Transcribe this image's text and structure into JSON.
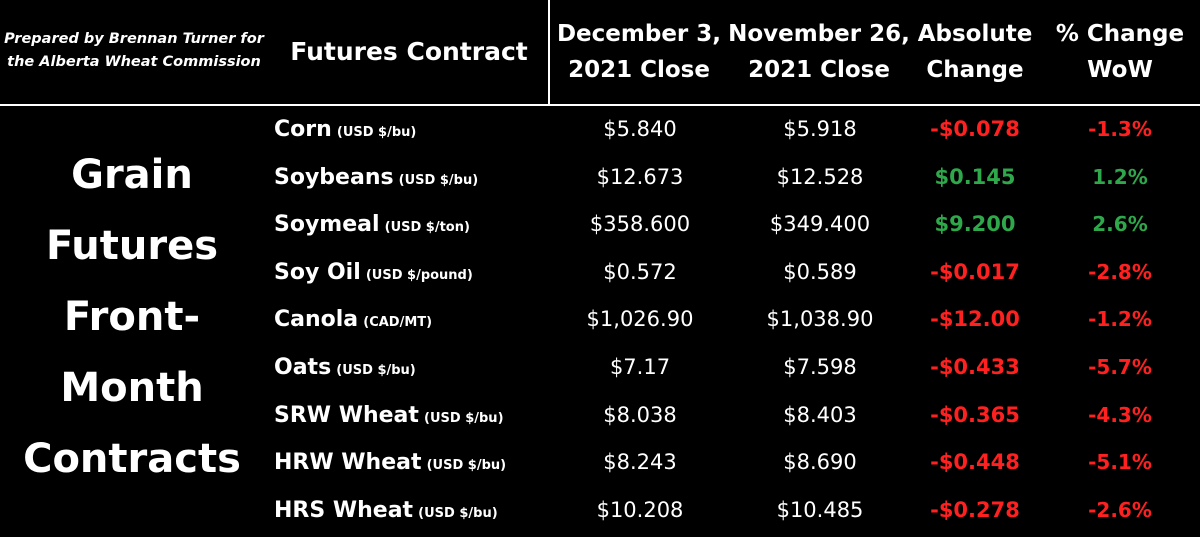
{
  "credit": {
    "line1": "Prepared by Brennan Turner for",
    "line2": "the Alberta Wheat Commission"
  },
  "headers": {
    "contract": "Futures Contract",
    "dec_line1": "December 3,",
    "dec_line2": "2021 Close",
    "nov_line1": "November 26,",
    "nov_line2": "2021 Close",
    "abs_line1": "Absolute",
    "abs_line2": "Change",
    "pct_line1": "% Change",
    "pct_line2": "WoW"
  },
  "side_title": {
    "line1": "Grain",
    "line2": "Futures",
    "line3": "Front-",
    "line4": "Month",
    "line5": "Contracts"
  },
  "colors": {
    "negative": "#ff2020",
    "positive": "#2ea84a",
    "background": "#000000",
    "text": "#ffffff"
  },
  "chart_data": {
    "type": "table",
    "columns": [
      "Futures Contract",
      "December 3, 2021 Close",
      "November 26, 2021 Close",
      "Absolute Change",
      "% Change WoW"
    ],
    "rows": [
      {
        "name": "Corn",
        "unit": "(USD $/bu)",
        "dec3": "$5.840",
        "nov26": "$5.918",
        "abs": "-$0.078",
        "pct": "-1.3%",
        "dir": "neg"
      },
      {
        "name": "Soybeans",
        "unit": "(USD $/bu)",
        "dec3": "$12.673",
        "nov26": "$12.528",
        "abs": "$0.145",
        "pct": "1.2%",
        "dir": "pos"
      },
      {
        "name": "Soymeal",
        "unit": "(USD $/ton)",
        "dec3": "$358.600",
        "nov26": "$349.400",
        "abs": "$9.200",
        "pct": "2.6%",
        "dir": "pos"
      },
      {
        "name": "Soy Oil",
        "unit": "(USD $/pound)",
        "dec3": "$0.572",
        "nov26": "$0.589",
        "abs": "-$0.017",
        "pct": "-2.8%",
        "dir": "neg"
      },
      {
        "name": "Canola",
        "unit": "(CAD/MT)",
        "dec3": "$1,026.90",
        "nov26": "$1,038.90",
        "abs": "-$12.00",
        "pct": "-1.2%",
        "dir": "neg"
      },
      {
        "name": "Oats",
        "unit": "(USD $/bu)",
        "dec3": "$7.17",
        "nov26": "$7.598",
        "abs": "-$0.433",
        "pct": "-5.7%",
        "dir": "neg"
      },
      {
        "name": "SRW Wheat",
        "unit": "(USD $/bu)",
        "dec3": "$8.038",
        "nov26": "$8.403",
        "abs": "-$0.365",
        "pct": "-4.3%",
        "dir": "neg"
      },
      {
        "name": "HRW Wheat",
        "unit": "(USD $/bu)",
        "dec3": "$8.243",
        "nov26": "$8.690",
        "abs": "-$0.448",
        "pct": "-5.1%",
        "dir": "neg"
      },
      {
        "name": "HRS Wheat",
        "unit": "(USD $/bu)",
        "dec3": "$10.208",
        "nov26": "$10.485",
        "abs": "-$0.278",
        "pct": "-2.6%",
        "dir": "neg"
      }
    ]
  }
}
